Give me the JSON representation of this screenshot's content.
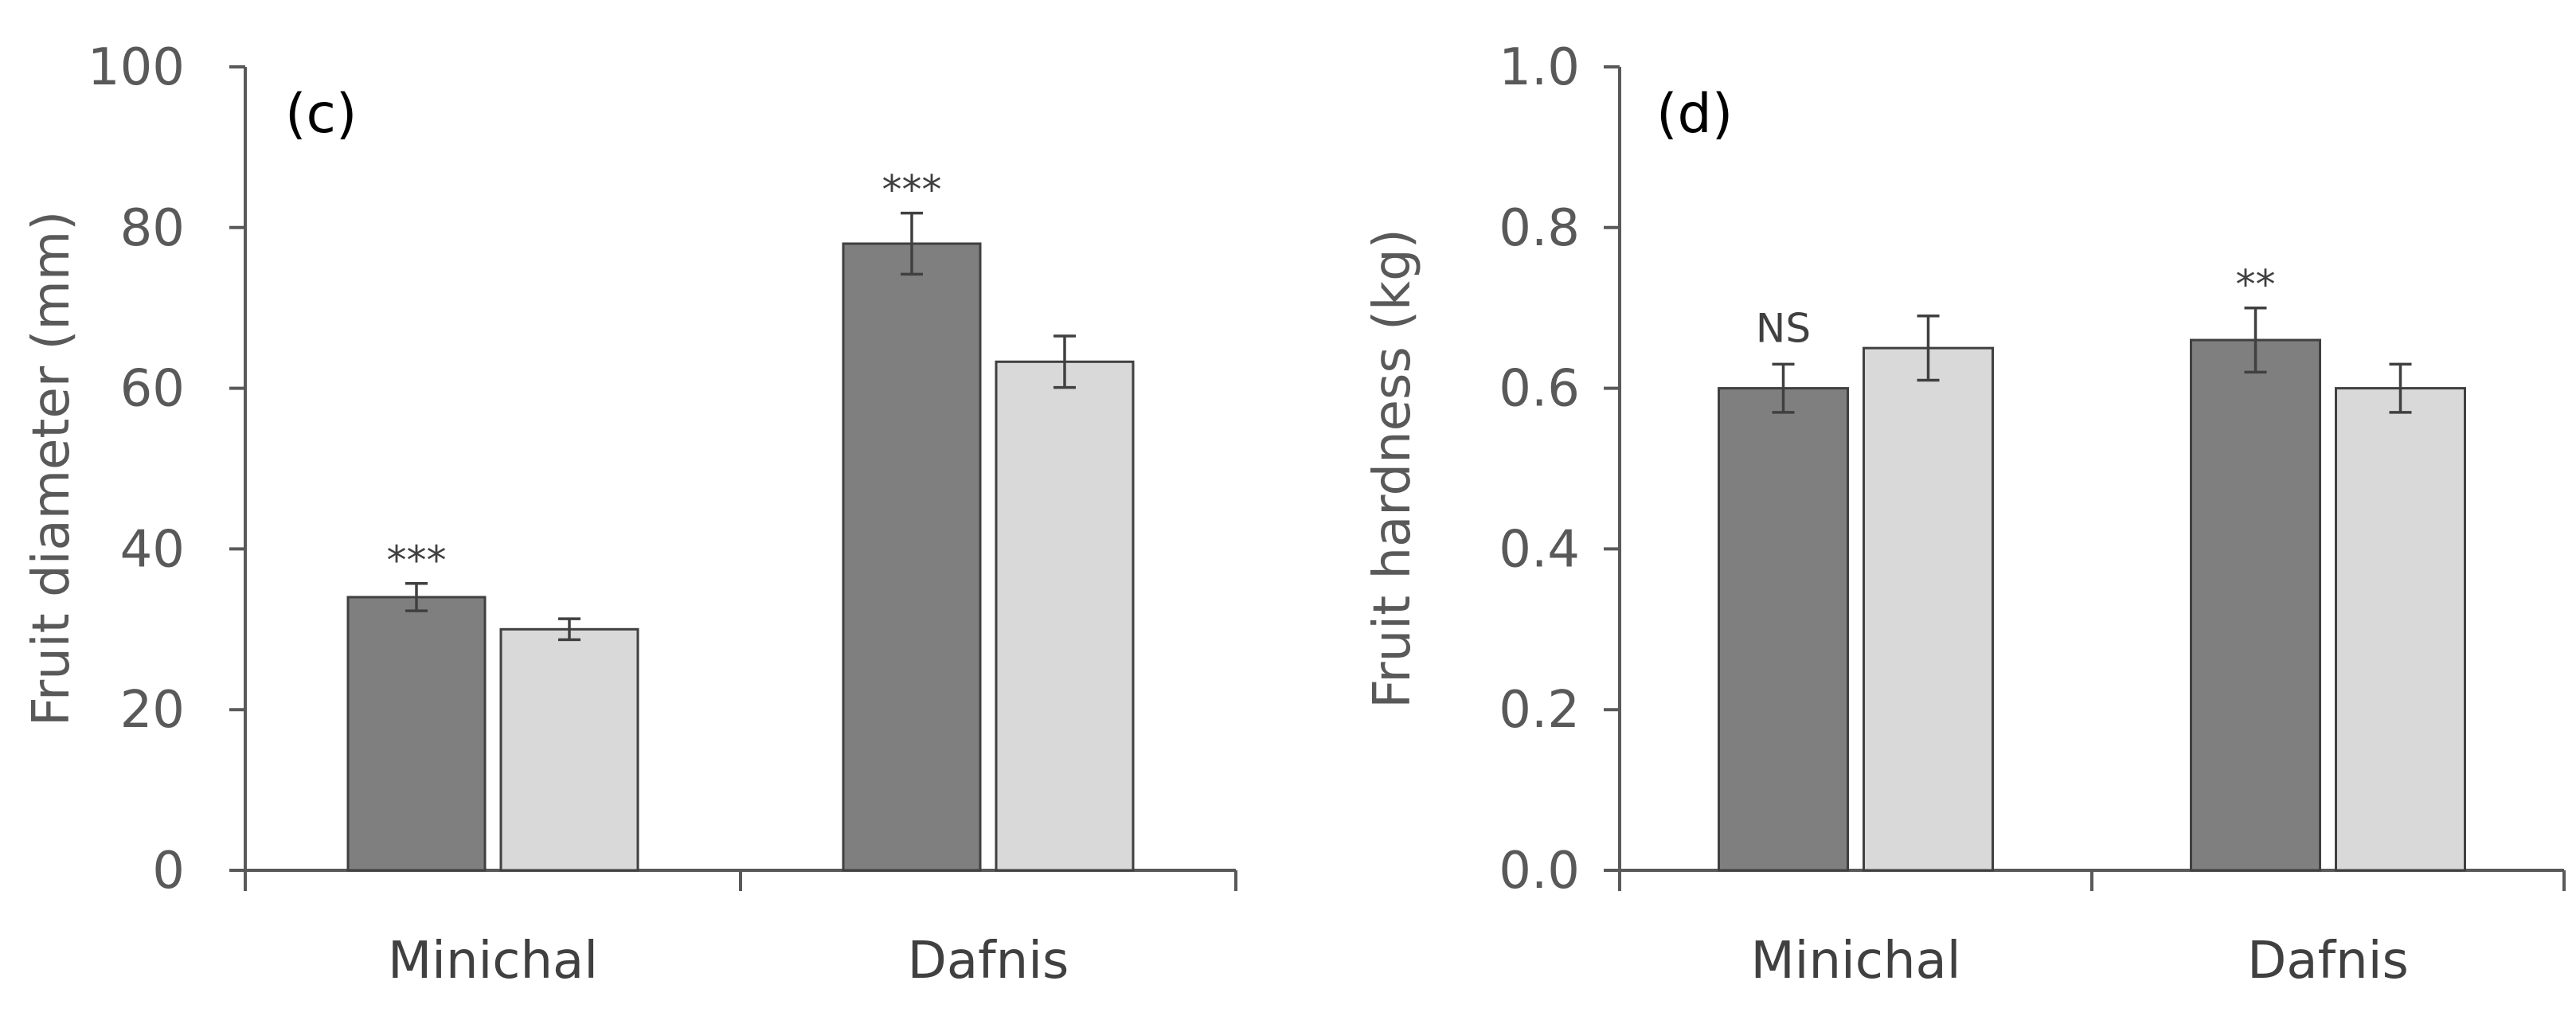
{
  "chart_data": [
    {
      "type": "bar",
      "panel_label": "(c)",
      "categories": [
        "Minichal",
        "Dafnis"
      ],
      "series": [
        {
          "name": "series 1",
          "color": "#7f7f7f",
          "values": [
            34,
            78
          ],
          "errors": [
            1.7,
            3.8
          ]
        },
        {
          "name": "series 2",
          "color": "#d9d9d9",
          "values": [
            30,
            63.3
          ],
          "errors": [
            1.3,
            3.2
          ]
        }
      ],
      "annotations": [
        "***",
        "***"
      ],
      "xlabel": "",
      "ylabel": "Fruit diameter (mm)",
      "ylim": [
        0,
        100
      ],
      "yticks": [
        0,
        20,
        40,
        60,
        80,
        100
      ],
      "ytick_labels": [
        "0",
        "20",
        "40",
        "60",
        "80",
        "100"
      ],
      "grid": false,
      "legend": "none"
    },
    {
      "type": "bar",
      "panel_label": "(d)",
      "categories": [
        "Minichal",
        "Dafnis"
      ],
      "series": [
        {
          "name": "series 1",
          "color": "#7f7f7f",
          "values": [
            0.6,
            0.66
          ],
          "errors": [
            0.03,
            0.04
          ]
        },
        {
          "name": "series 2",
          "color": "#d9d9d9",
          "values": [
            0.65,
            0.6
          ],
          "errors": [
            0.04,
            0.03
          ]
        }
      ],
      "annotations": [
        "NS",
        "**"
      ],
      "xlabel": "",
      "ylabel": "Fruit hardness (kg)",
      "ylim": [
        0,
        1.0
      ],
      "yticks": [
        0,
        0.2,
        0.4,
        0.6,
        0.8,
        1.0
      ],
      "ytick_labels": [
        "0.0",
        "0.2",
        "0.4",
        "0.6",
        "0.8",
        "1.0"
      ],
      "grid": false,
      "legend": "none"
    }
  ],
  "colors": {
    "axis": "#595959",
    "bar_stroke": "#404040",
    "error_bar": "#404040"
  }
}
